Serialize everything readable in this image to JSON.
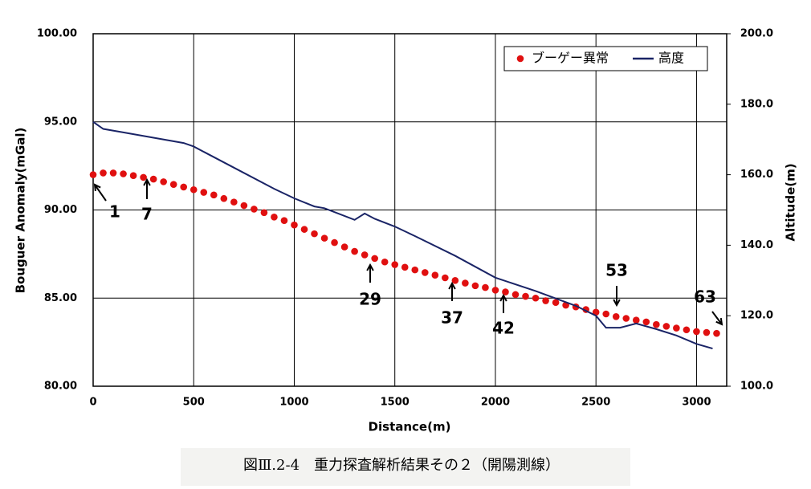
{
  "chart_data": {
    "type": "combo",
    "y_label": "Bouguer Anomaly(mGal)",
    "y2_label": "Altitude(m)",
    "x_label": "Distance(m)",
    "caption": "図Ⅲ.2-4　重力探査解析結果その２（開陽測線）",
    "xlim": [
      0,
      3150
    ],
    "xticks": [
      0,
      500,
      1000,
      1500,
      2000,
      2500,
      3000
    ],
    "ylim": [
      80,
      100
    ],
    "yticks": [
      {
        "value": 80,
        "label": "80.00"
      },
      {
        "value": 85,
        "label": "85.00"
      },
      {
        "value": 90,
        "label": "90.00"
      },
      {
        "value": 95,
        "label": "95.00"
      },
      {
        "value": 100,
        "label": "100.00"
      }
    ],
    "y2lim": [
      100,
      200
    ],
    "y2ticks": [
      {
        "value": 100,
        "label": "100.0"
      },
      {
        "value": 120,
        "label": "120.0"
      },
      {
        "value": 140,
        "label": "140.0"
      },
      {
        "value": 160,
        "label": "160.0"
      },
      {
        "value": 180,
        "label": "180.0"
      },
      {
        "value": 200,
        "label": "200.0"
      }
    ],
    "grid": true,
    "legend": "upper right",
    "series": [
      {
        "name": "ブーゲー異常",
        "type": "scatter",
        "color": "#e01010",
        "x": [
          0,
          50,
          100,
          150,
          200,
          250,
          300,
          350,
          400,
          450,
          500,
          550,
          600,
          650,
          700,
          750,
          800,
          850,
          900,
          950,
          1000,
          1050,
          1100,
          1150,
          1200,
          1250,
          1300,
          1350,
          1400,
          1450,
          1500,
          1550,
          1600,
          1650,
          1700,
          1750,
          1800,
          1850,
          1900,
          1950,
          2000,
          2050,
          2100,
          2150,
          2200,
          2250,
          2300,
          2350,
          2400,
          2450,
          2500,
          2550,
          2600,
          2650,
          2700,
          2750,
          2800,
          2850,
          2900,
          2950,
          3000,
          3050,
          3100
        ],
        "values": [
          92.0,
          92.1,
          92.1,
          92.05,
          91.95,
          91.85,
          91.75,
          91.6,
          91.45,
          91.3,
          91.15,
          91.0,
          90.85,
          90.65,
          90.45,
          90.25,
          90.05,
          89.85,
          89.6,
          89.4,
          89.15,
          88.9,
          88.65,
          88.4,
          88.15,
          87.9,
          87.65,
          87.45,
          87.25,
          87.05,
          86.9,
          86.75,
          86.6,
          86.45,
          86.3,
          86.15,
          86.0,
          85.85,
          85.7,
          85.6,
          85.45,
          85.35,
          85.2,
          85.1,
          85.0,
          84.85,
          84.75,
          84.6,
          84.5,
          84.35,
          84.2,
          84.1,
          83.95,
          83.85,
          83.75,
          83.65,
          83.5,
          83.4,
          83.3,
          83.2,
          83.1,
          83.05,
          83.0
        ]
      },
      {
        "name": "高度",
        "type": "line",
        "axis": "y2",
        "color": "#1a2466",
        "x": [
          0,
          50,
          150,
          300,
          450,
          500,
          700,
          900,
          1000,
          1100,
          1150,
          1300,
          1350,
          1400,
          1500,
          1600,
          1800,
          2000,
          2200,
          2400,
          2500,
          2550,
          2620,
          2700,
          2800,
          2900,
          3000,
          3080
        ],
        "values": [
          175,
          173,
          172,
          170.5,
          169,
          168,
          162,
          156,
          153.3,
          151,
          150.5,
          147.2,
          149,
          147.5,
          145.3,
          142.6,
          137,
          130.8,
          127,
          122.8,
          120,
          116.6,
          116.6,
          117.8,
          116.2,
          114.4,
          112,
          110.7
        ]
      }
    ],
    "annotations": [
      "1",
      "7",
      "29",
      "37",
      "42",
      "53",
      "63"
    ]
  }
}
